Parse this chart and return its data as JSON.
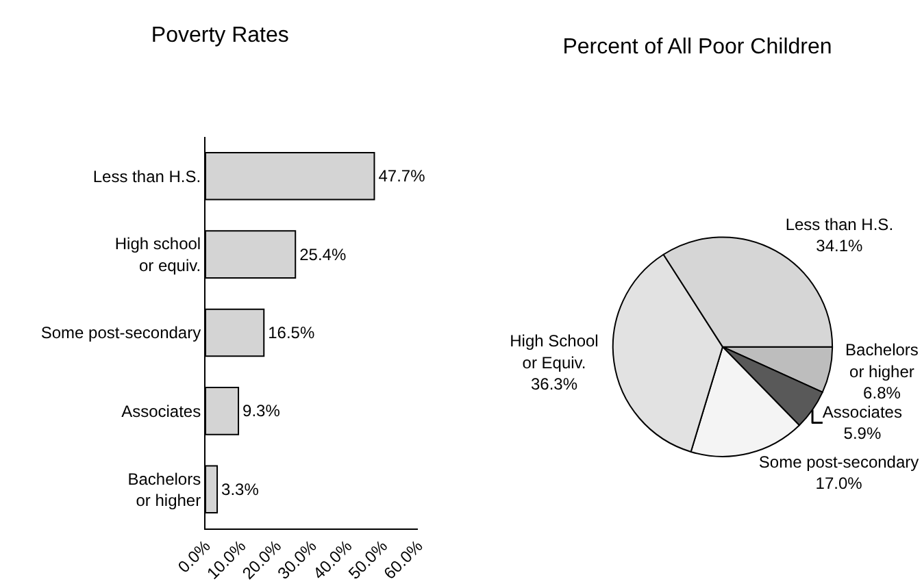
{
  "chart_data": [
    {
      "type": "bar",
      "title": "Poverty Rates",
      "orientation": "horizontal",
      "categories": [
        "Less than H.S.",
        "High school\nor equiv.",
        "Some post-secondary",
        "Associates",
        "Bachelors\nor higher"
      ],
      "values": [
        47.7,
        25.4,
        16.5,
        9.3,
        3.3
      ],
      "value_labels": [
        "47.7%",
        "25.4%",
        "16.5%",
        "9.3%",
        "3.3%"
      ],
      "color": "#d4d4d4",
      "xlim": [
        0,
        60
      ],
      "xticks": [
        {
          "value": 0,
          "label": "0.0%"
        },
        {
          "value": 10,
          "label": "10.0%"
        },
        {
          "value": 20,
          "label": "20.0%"
        },
        {
          "value": 30,
          "label": "30.0%"
        },
        {
          "value": 40,
          "label": "40.0%"
        },
        {
          "value": 50,
          "label": "50.0%"
        },
        {
          "value": 60,
          "label": "60.0%"
        }
      ],
      "grid": false,
      "legend": false
    },
    {
      "type": "pie",
      "title": "Percent of All Poor Children",
      "categories": [
        "Bachelors\nor higher",
        "Associates",
        "Some post-secondary",
        "High School\nor Equiv.",
        "Less than H.S."
      ],
      "values": [
        6.8,
        5.9,
        17.0,
        36.3,
        34.1
      ],
      "value_labels": [
        "6.8%",
        "5.9%",
        "17.0%",
        "36.3%",
        "34.1%"
      ],
      "colors": [
        "#bdbdbd",
        "#595959",
        "#f4f4f4",
        "#e2e2e2",
        "#d6d6d6"
      ],
      "legend": false
    }
  ]
}
